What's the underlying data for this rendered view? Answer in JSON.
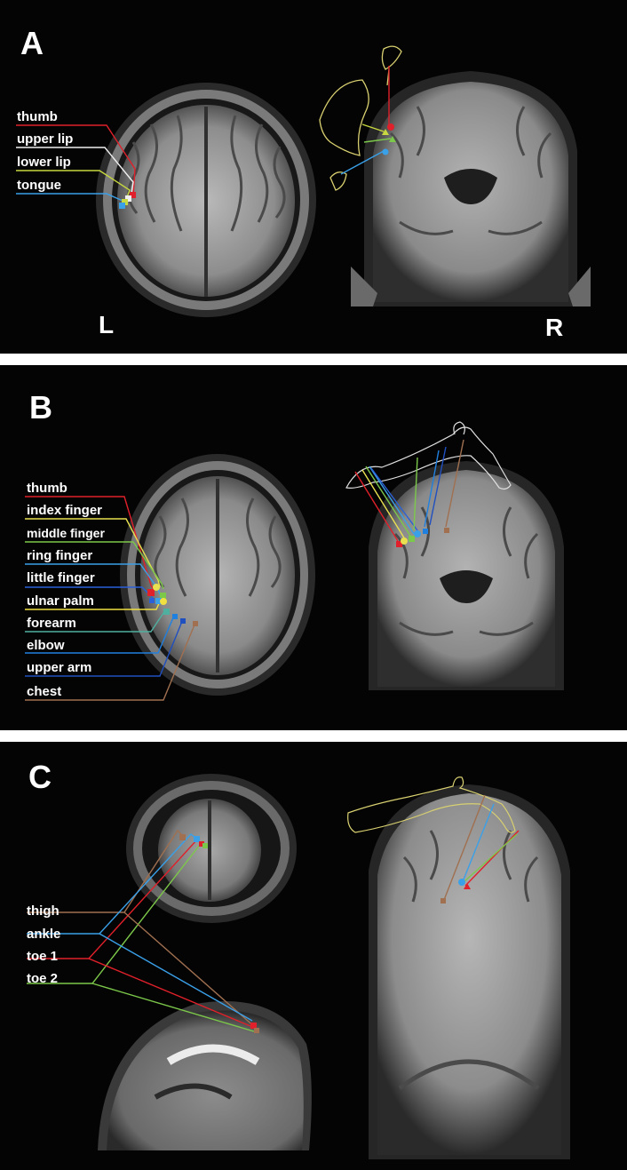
{
  "panels": {
    "a": {
      "letter": "A",
      "left_marker": "L",
      "right_marker": "R",
      "labels": [
        "thumb",
        "upper lip",
        "lower lip",
        "tongue"
      ],
      "colors": [
        "#e0202a",
        "#f0f0f0",
        "#c8d840",
        "#3aa0e8"
      ]
    },
    "b": {
      "letter": "B",
      "labels": [
        "thumb",
        "index finger",
        "middle finger",
        "ring finger",
        "little finger",
        "ulnar palm",
        "forearm",
        "elbow",
        "upper arm",
        "chest"
      ],
      "colors": [
        "#e0202a",
        "#e8e050",
        "#7cc84a",
        "#3aa0e8",
        "#2a60d8",
        "#f0e040",
        "#50b0a0",
        "#2080e0",
        "#2050c0",
        "#a07050"
      ]
    },
    "c": {
      "letter": "C",
      "labels": [
        "thigh",
        "ankle",
        "toe 1",
        "toe 2"
      ],
      "colors": [
        "#a07050",
        "#3aa0e8",
        "#e0202a",
        "#7cc84a"
      ]
    }
  }
}
